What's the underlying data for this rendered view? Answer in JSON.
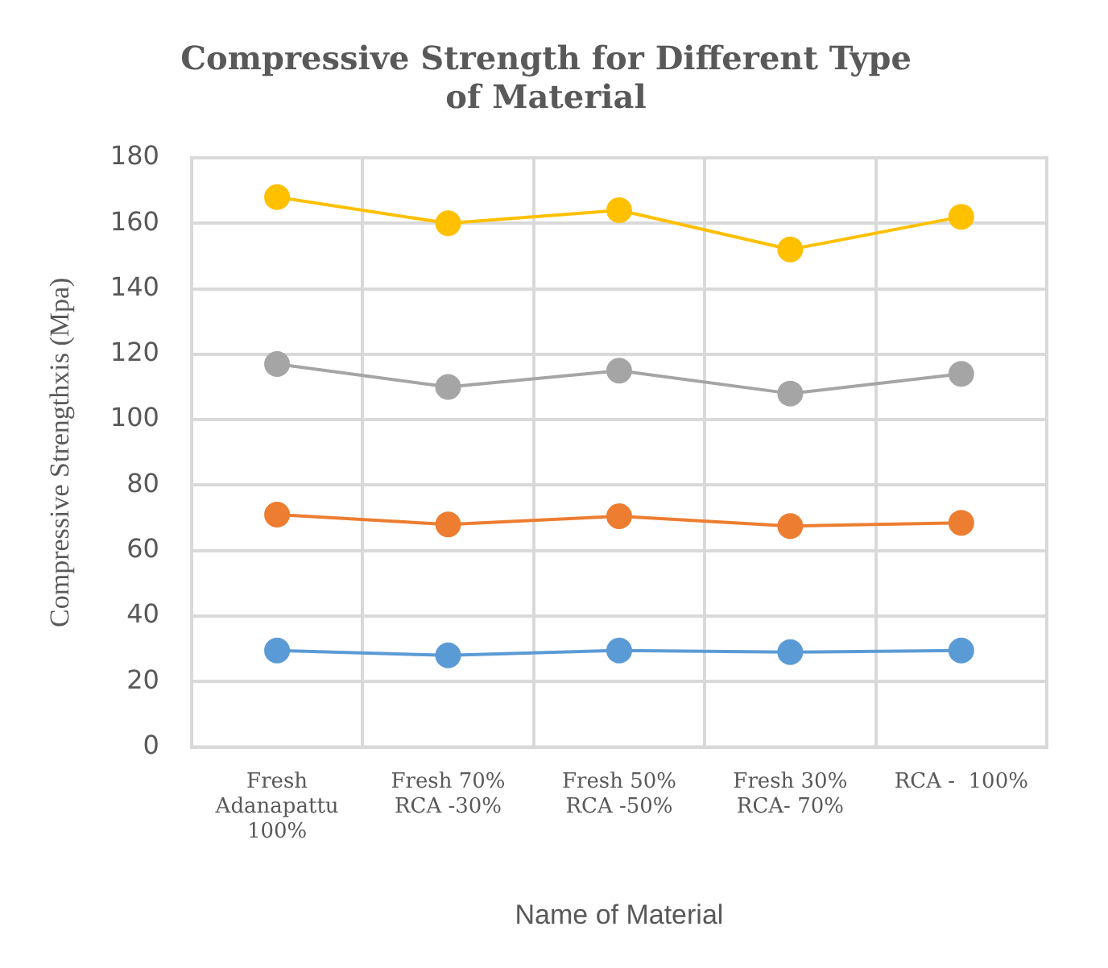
{
  "chart_data": {
    "type": "line",
    "title": "Compressive Strength for Different Type of Material",
    "xlabel": "Name of Material",
    "ylabel": "Compressive Strengthxis (Mpa)",
    "categories": [
      "Fresh\nAdanapattu\n100%",
      "Fresh 70%\nRCA -30%",
      "Fresh 50%\nRCA -50%",
      "Fresh 30%\nRCA- 70%",
      "RCA -  100%"
    ],
    "series": [
      {
        "color": "#5b9bd5",
        "values": [
          29.5,
          28,
          29.5,
          29,
          29.5
        ]
      },
      {
        "color": "#ed7d31",
        "values": [
          71,
          68,
          70.5,
          67.5,
          68.5
        ]
      },
      {
        "color": "#a5a5a5",
        "values": [
          117,
          110,
          115,
          108,
          114
        ]
      },
      {
        "color": "#ffc000",
        "values": [
          168,
          160,
          164,
          152,
          162
        ]
      }
    ],
    "ylim": [
      0,
      180
    ],
    "yticks": [
      0,
      20,
      40,
      60,
      80,
      100,
      120,
      140,
      160,
      180
    ],
    "grid": true,
    "legend": false,
    "marker": "circle",
    "line_style": "solid"
  }
}
